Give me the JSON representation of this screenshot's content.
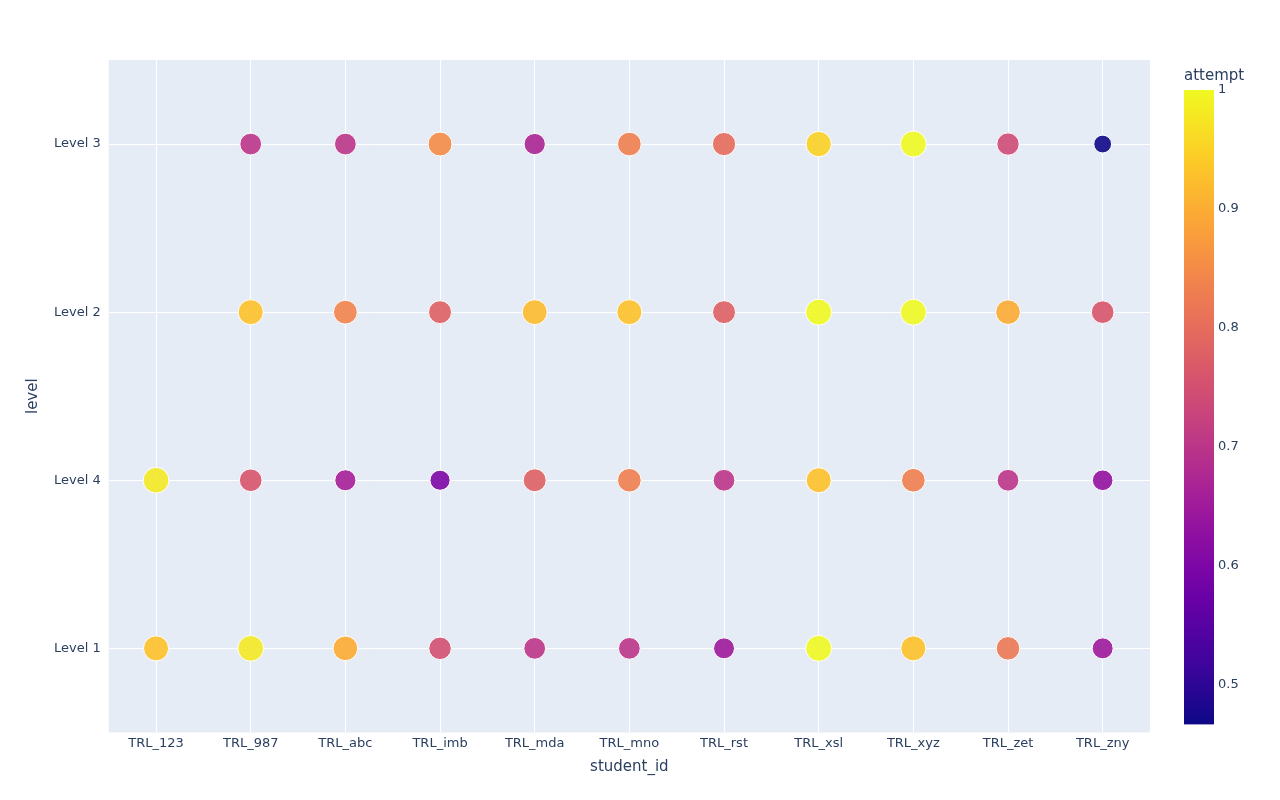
{
  "chart_data": {
    "type": "scatter",
    "x_label": "student_id",
    "y_label": "level",
    "x_categories": [
      "TRL_123",
      "TRL_987",
      "TRL_abc",
      "TRL_imb",
      "TRL_mda",
      "TRL_mno",
      "TRL_rst",
      "TRL_xsl",
      "TRL_xyz",
      "TRL_zet",
      "TRL_zny"
    ],
    "y_categories": [
      "Level 1",
      "Level 4",
      "Level 2",
      "Level 3"
    ],
    "grid": true,
    "points": [
      {
        "student_id": "TRL_123",
        "level": "Level 1",
        "attempt": 0.93
      },
      {
        "student_id": "TRL_987",
        "level": "Level 1",
        "attempt": 0.98
      },
      {
        "student_id": "TRL_abc",
        "level": "Level 1",
        "attempt": 0.9
      },
      {
        "student_id": "TRL_imb",
        "level": "Level 1",
        "attempt": 0.75
      },
      {
        "student_id": "TRL_mda",
        "level": "Level 1",
        "attempt": 0.7
      },
      {
        "student_id": "TRL_mno",
        "level": "Level 1",
        "attempt": 0.7
      },
      {
        "student_id": "TRL_rst",
        "level": "Level 1",
        "attempt": 0.65
      },
      {
        "student_id": "TRL_xsl",
        "level": "Level 1",
        "attempt": 1
      },
      {
        "student_id": "TRL_xyz",
        "level": "Level 1",
        "attempt": 0.93
      },
      {
        "student_id": "TRL_zet",
        "level": "Level 1",
        "attempt": 0.82
      },
      {
        "student_id": "TRL_zny",
        "level": "Level 1",
        "attempt": 0.65
      },
      {
        "student_id": "TRL_123",
        "level": "Level 4",
        "attempt": 0.98
      },
      {
        "student_id": "TRL_987",
        "level": "Level 4",
        "attempt": 0.76
      },
      {
        "student_id": "TRL_abc",
        "level": "Level 4",
        "attempt": 0.66
      },
      {
        "student_id": "TRL_imb",
        "level": "Level 4",
        "attempt": 0.6
      },
      {
        "student_id": "TRL_mda",
        "level": "Level 4",
        "attempt": 0.78
      },
      {
        "student_id": "TRL_mno",
        "level": "Level 4",
        "attempt": 0.83
      },
      {
        "student_id": "TRL_rst",
        "level": "Level 4",
        "attempt": 0.7
      },
      {
        "student_id": "TRL_xsl",
        "level": "Level 4",
        "attempt": 0.93
      },
      {
        "student_id": "TRL_xyz",
        "level": "Level 4",
        "attempt": 0.83
      },
      {
        "student_id": "TRL_zet",
        "level": "Level 4",
        "attempt": 0.7
      },
      {
        "student_id": "TRL_zny",
        "level": "Level 4",
        "attempt": 0.63
      },
      {
        "student_id": "TRL_987",
        "level": "Level 2",
        "attempt": 0.93
      },
      {
        "student_id": "TRL_abc",
        "level": "Level 2",
        "attempt": 0.84
      },
      {
        "student_id": "TRL_imb",
        "level": "Level 2",
        "attempt": 0.78
      },
      {
        "student_id": "TRL_mda",
        "level": "Level 2",
        "attempt": 0.92
      },
      {
        "student_id": "TRL_mno",
        "level": "Level 2",
        "attempt": 0.93
      },
      {
        "student_id": "TRL_rst",
        "level": "Level 2",
        "attempt": 0.78
      },
      {
        "student_id": "TRL_xsl",
        "level": "Level 2",
        "attempt": 1
      },
      {
        "student_id": "TRL_xyz",
        "level": "Level 2",
        "attempt": 1
      },
      {
        "student_id": "TRL_zet",
        "level": "Level 2",
        "attempt": 0.9
      },
      {
        "student_id": "TRL_zny",
        "level": "Level 2",
        "attempt": 0.76
      },
      {
        "student_id": "TRL_987",
        "level": "Level 3",
        "attempt": 0.7
      },
      {
        "student_id": "TRL_abc",
        "level": "Level 3",
        "attempt": 0.7
      },
      {
        "student_id": "TRL_imb",
        "level": "Level 3",
        "attempt": 0.85
      },
      {
        "student_id": "TRL_mda",
        "level": "Level 3",
        "attempt": 0.67
      },
      {
        "student_id": "TRL_mno",
        "level": "Level 3",
        "attempt": 0.83
      },
      {
        "student_id": "TRL_rst",
        "level": "Level 3",
        "attempt": 0.8
      },
      {
        "student_id": "TRL_xsl",
        "level": "Level 3",
        "attempt": 0.95
      },
      {
        "student_id": "TRL_xyz",
        "level": "Level 3",
        "attempt": 1
      },
      {
        "student_id": "TRL_zet",
        "level": "Level 3",
        "attempt": 0.74
      },
      {
        "student_id": "TRL_zny",
        "level": "Level 3",
        "attempt": 0.47
      }
    ],
    "colorbar": {
      "title": "attempt",
      "range": [
        0.4667,
        1
      ],
      "ticks": [
        0.5,
        0.6,
        0.7,
        0.8,
        0.9,
        1
      ]
    }
  }
}
